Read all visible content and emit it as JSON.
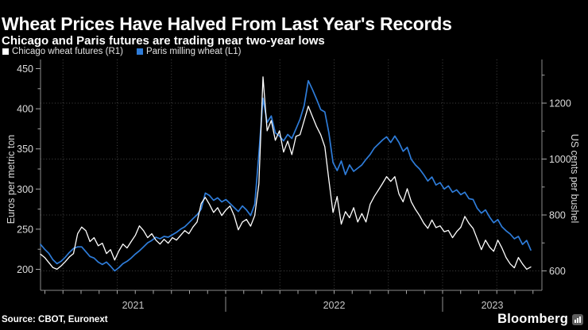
{
  "header": {
    "title": "Wheat Prices Have Halved From Last Year's Records",
    "subtitle": "Chicago and Paris futures are trading near two-year lows"
  },
  "legend": {
    "items": [
      {
        "label": "Chicago wheat futures (R1)",
        "color": "#ffffff"
      },
      {
        "label": "Paris milling wheat (L1)",
        "color": "#2e7cd9"
      }
    ]
  },
  "footer": {
    "source": "Source: CBOT, Euronext",
    "brand": "Bloomberg"
  },
  "chart_data": {
    "type": "line",
    "title": "Wheat Prices Have Halved From Last Year's Records",
    "subtitle": "Chicago and Paris futures are trading near two-year lows",
    "grid": "dotted",
    "legend_position": "top-left",
    "x_axis": {
      "year_labels": [
        "2021",
        "2022",
        "2023"
      ],
      "x_start_approx": "Feb 2021",
      "x_end_approx": "Jun 2023",
      "minor_tick_interval": "month",
      "gridline_interval": "quarter"
    },
    "left_axis": {
      "label": "Euros per metric ton",
      "ticks": [
        450,
        400,
        350,
        300,
        250,
        200
      ],
      "minor_ticks": [
        425,
        375,
        325,
        275,
        225
      ],
      "range_visible": [
        200,
        450
      ]
    },
    "right_axis": {
      "label": "US cents per bushel",
      "ticks": [
        1200,
        1000,
        800,
        600
      ],
      "minor_ticks": [
        1300,
        1100,
        900,
        700
      ],
      "range_visible": [
        600,
        1200
      ],
      "gridlines": true
    },
    "series": [
      {
        "name": "Chicago wheat futures (R1)",
        "axis": "right",
        "unit": "US cents per bushel",
        "color": "#ffffff",
        "values": [
          660,
          648,
          630,
          612,
          606,
          618,
          633,
          650,
          662,
          733,
          757,
          744,
          705,
          719,
          690,
          699,
          662,
          676,
          639,
          671,
          696,
          682,
          705,
          727,
          761,
          744,
          719,
          733,
          710,
          696,
          713,
          699,
          719,
          710,
          727,
          744,
          733,
          757,
          775,
          841,
          863,
          838,
          809,
          826,
          798,
          818,
          832,
          798,
          747,
          775,
          784,
          760,
          798,
          911,
          1294,
          1101,
          1138,
          1067,
          1101,
          1025,
          1064,
          1016,
          1081,
          1087,
          1138,
          1189,
          1152,
          1116,
          1087,
          1044,
          925,
          809,
          866,
          767,
          812,
          790,
          826,
          775,
          805,
          775,
          838,
          866,
          889,
          912,
          937,
          920,
          937,
          875,
          847,
          894,
          847,
          820,
          798,
          771,
          752,
          782,
          755,
          761,
          740,
          745,
          719,
          740,
          756,
          795,
          770,
          752,
          714,
          676,
          710,
          685,
          670,
          710,
          682,
          648,
          625,
          611,
          648,
          625,
          606,
          614
        ]
      },
      {
        "name": "Paris milling wheat (L1)",
        "axis": "left",
        "unit": "Euros per metric ton",
        "color": "#2e7cd9",
        "values": [
          231,
          225,
          220,
          212,
          207,
          210,
          215,
          221,
          226,
          228,
          228,
          222,
          216,
          214,
          209,
          206,
          209,
          204,
          198,
          202,
          207,
          210,
          214,
          219,
          223,
          228,
          233,
          236,
          240,
          238,
          241,
          240,
          243,
          246,
          250,
          253,
          258,
          263,
          268,
          275,
          295,
          292,
          286,
          289,
          284,
          287,
          282,
          277,
          272,
          279,
          274,
          267,
          281,
          344,
          413,
          383,
          391,
          370,
          366,
          360,
          368,
          363,
          375,
          387,
          404,
          435,
          424,
          412,
          399,
          396,
          370,
          333,
          323,
          335,
          318,
          330,
          322,
          326,
          330,
          337,
          343,
          351,
          356,
          361,
          365,
          358,
          366,
          358,
          347,
          352,
          337,
          330,
          325,
          318,
          310,
          315,
          305,
          308,
          300,
          304,
          296,
          299,
          293,
          296,
          288,
          287,
          276,
          270,
          274,
          265,
          258,
          262,
          253,
          248,
          244,
          238,
          241,
          231,
          236,
          224
        ]
      }
    ]
  }
}
